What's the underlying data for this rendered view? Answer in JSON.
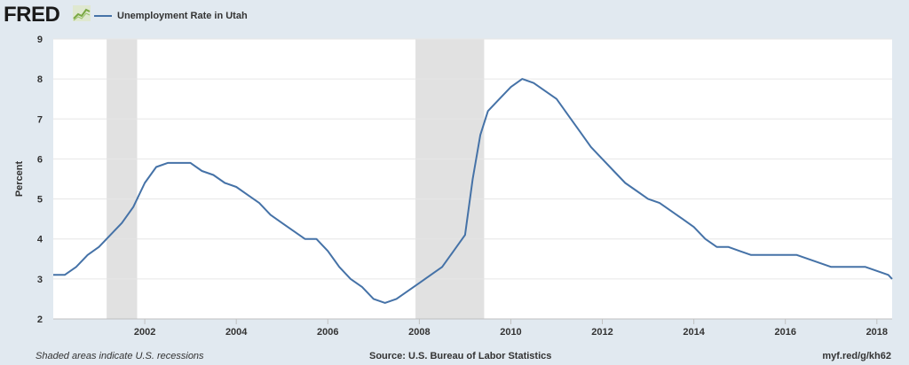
{
  "header": {
    "logo": "FRED",
    "legend_label": "Unemployment Rate in Utah",
    "series_color": "#4572a7"
  },
  "footer": {
    "note": "Shaded areas indicate U.S. recessions",
    "source": "Source: U.S. Bureau of Labor Statistics",
    "link": "myf.red/g/kh62"
  },
  "chart_data": {
    "type": "line",
    "title": "",
    "xlabel": "",
    "ylabel": "Percent",
    "ylim": [
      2,
      9
    ],
    "yticks": [
      2,
      3,
      4,
      5,
      6,
      7,
      8,
      9
    ],
    "xlim": [
      "2000-01",
      "2018-05"
    ],
    "xticks": [
      "2002",
      "2004",
      "2006",
      "2008",
      "2010",
      "2012",
      "2014",
      "2016",
      "2018"
    ],
    "grid": {
      "y": true,
      "x": false
    },
    "recession_shading": [
      {
        "start": "2001-03",
        "end": "2001-11"
      },
      {
        "start": "2007-12",
        "end": "2009-06"
      }
    ],
    "series": [
      {
        "name": "Unemployment Rate in Utah",
        "color": "#4572a7",
        "x": [
          "2000-01",
          "2000-04",
          "2000-07",
          "2000-10",
          "2001-01",
          "2001-04",
          "2001-07",
          "2001-10",
          "2002-01",
          "2002-04",
          "2002-07",
          "2002-10",
          "2003-01",
          "2003-04",
          "2003-07",
          "2003-10",
          "2004-01",
          "2004-04",
          "2004-07",
          "2004-10",
          "2005-01",
          "2005-04",
          "2005-07",
          "2005-10",
          "2006-01",
          "2006-04",
          "2006-07",
          "2006-10",
          "2007-01",
          "2007-04",
          "2007-07",
          "2007-10",
          "2008-01",
          "2008-04",
          "2008-07",
          "2008-10",
          "2009-01",
          "2009-03",
          "2009-05",
          "2009-07",
          "2009-10",
          "2010-01",
          "2010-04",
          "2010-07",
          "2010-10",
          "2011-01",
          "2011-04",
          "2011-07",
          "2011-10",
          "2012-01",
          "2012-04",
          "2012-07",
          "2012-10",
          "2013-01",
          "2013-04",
          "2013-07",
          "2013-10",
          "2014-01",
          "2014-04",
          "2014-07",
          "2014-10",
          "2015-01",
          "2015-04",
          "2015-07",
          "2015-10",
          "2016-01",
          "2016-04",
          "2016-07",
          "2016-10",
          "2017-01",
          "2017-04",
          "2017-07",
          "2017-10",
          "2018-01",
          "2018-04"
        ],
        "values": [
          3.1,
          3.1,
          3.3,
          3.6,
          3.8,
          4.1,
          4.4,
          4.8,
          5.4,
          5.8,
          5.9,
          5.9,
          5.9,
          5.7,
          5.6,
          5.4,
          5.3,
          5.1,
          4.9,
          4.6,
          4.4,
          4.2,
          4.0,
          4.0,
          3.7,
          3.3,
          3.0,
          2.8,
          2.5,
          2.4,
          2.5,
          2.7,
          2.9,
          3.1,
          3.3,
          3.7,
          4.1,
          5.5,
          6.6,
          7.2,
          7.5,
          7.8,
          8.0,
          7.9,
          7.7,
          7.5,
          7.1,
          6.7,
          6.3,
          6.0,
          5.7,
          5.4,
          5.2,
          5.0,
          4.9,
          4.7,
          4.5,
          4.3,
          4.0,
          3.8,
          3.8,
          3.7,
          3.6,
          3.6,
          3.6,
          3.6,
          3.6,
          3.5,
          3.4,
          3.3,
          3.3,
          3.3,
          3.3,
          3.2,
          3.1
        ]
      }
    ]
  }
}
